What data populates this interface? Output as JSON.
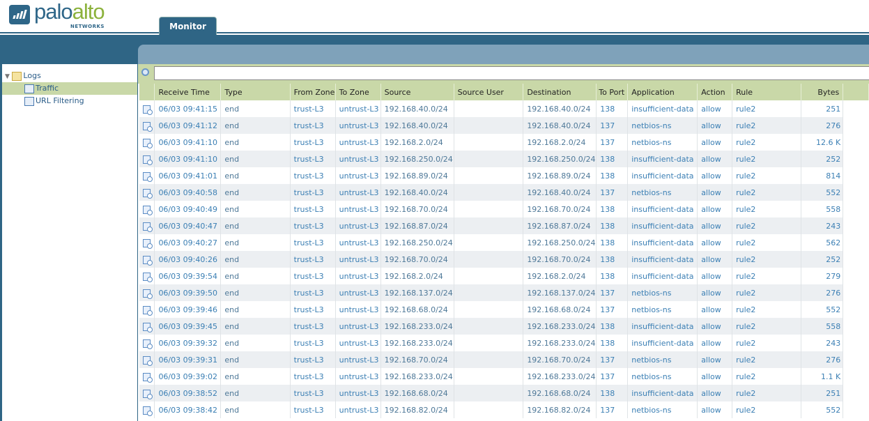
{
  "brand": {
    "name_a": "palo",
    "name_b": "alto",
    "sub": "NETWORKS"
  },
  "tabs": [
    {
      "label": "Monitor",
      "active": true
    }
  ],
  "sidebar": {
    "root": "Logs",
    "items": [
      {
        "label": "Traffic",
        "selected": true
      },
      {
        "label": "URL Filtering",
        "selected": false
      }
    ]
  },
  "search": {
    "value": "",
    "placeholder": ""
  },
  "colors": {
    "header": "#2f6585",
    "accent": "#c9d8a8",
    "link": "#3b7fb4"
  },
  "columns": [
    "Receive Time",
    "Type",
    "From Zone",
    "To Zone",
    "Source",
    "Source User",
    "Destination",
    "To Port",
    "Application",
    "Action",
    "Rule",
    "Bytes"
  ],
  "rows": [
    [
      "06/03 09:41:15",
      "end",
      "trust-L3",
      "untrust-L3",
      "192.168.40.0/24",
      "",
      "192.168.40.0/24",
      "138",
      "insufficient-data",
      "allow",
      "rule2",
      "251"
    ],
    [
      "06/03 09:41:12",
      "end",
      "trust-L3",
      "untrust-L3",
      "192.168.40.0/24",
      "",
      "192.168.40.0/24",
      "137",
      "netbios-ns",
      "allow",
      "rule2",
      "276"
    ],
    [
      "06/03 09:41:10",
      "end",
      "trust-L3",
      "untrust-L3",
      "192.168.2.0/24",
      "",
      "192.168.2.0/24",
      "137",
      "netbios-ns",
      "allow",
      "rule2",
      "12.6 K"
    ],
    [
      "06/03 09:41:10",
      "end",
      "trust-L3",
      "untrust-L3",
      "192.168.250.0/24",
      "",
      "192.168.250.0/24",
      "138",
      "insufficient-data",
      "allow",
      "rule2",
      "252"
    ],
    [
      "06/03 09:41:01",
      "end",
      "trust-L3",
      "untrust-L3",
      "192.168.89.0/24",
      "",
      "192.168.89.0/24",
      "138",
      "insufficient-data",
      "allow",
      "rule2",
      "814"
    ],
    [
      "06/03 09:40:58",
      "end",
      "trust-L3",
      "untrust-L3",
      "192.168.40.0/24",
      "",
      "192.168.40.0/24",
      "137",
      "netbios-ns",
      "allow",
      "rule2",
      "552"
    ],
    [
      "06/03 09:40:49",
      "end",
      "trust-L3",
      "untrust-L3",
      "192.168.70.0/24",
      "",
      "192.168.70.0/24",
      "138",
      "insufficient-data",
      "allow",
      "rule2",
      "558"
    ],
    [
      "06/03 09:40:47",
      "end",
      "trust-L3",
      "untrust-L3",
      "192.168.87.0/24",
      "",
      "192.168.87.0/24",
      "138",
      "insufficient-data",
      "allow",
      "rule2",
      "243"
    ],
    [
      "06/03 09:40:27",
      "end",
      "trust-L3",
      "untrust-L3",
      "192.168.250.0/24",
      "",
      "192.168.250.0/24",
      "138",
      "insufficient-data",
      "allow",
      "rule2",
      "562"
    ],
    [
      "06/03 09:40:26",
      "end",
      "trust-L3",
      "untrust-L3",
      "192.168.70.0/24",
      "",
      "192.168.70.0/24",
      "138",
      "insufficient-data",
      "allow",
      "rule2",
      "252"
    ],
    [
      "06/03 09:39:54",
      "end",
      "trust-L3",
      "untrust-L3",
      "192.168.2.0/24",
      "",
      "192.168.2.0/24",
      "138",
      "insufficient-data",
      "allow",
      "rule2",
      "279"
    ],
    [
      "06/03 09:39:50",
      "end",
      "trust-L3",
      "untrust-L3",
      "192.168.137.0/24",
      "",
      "192.168.137.0/24",
      "137",
      "netbios-ns",
      "allow",
      "rule2",
      "276"
    ],
    [
      "06/03 09:39:46",
      "end",
      "trust-L3",
      "untrust-L3",
      "192.168.68.0/24",
      "",
      "192.168.68.0/24",
      "137",
      "netbios-ns",
      "allow",
      "rule2",
      "552"
    ],
    [
      "06/03 09:39:45",
      "end",
      "trust-L3",
      "untrust-L3",
      "192.168.233.0/24",
      "",
      "192.168.233.0/24",
      "138",
      "insufficient-data",
      "allow",
      "rule2",
      "558"
    ],
    [
      "06/03 09:39:32",
      "end",
      "trust-L3",
      "untrust-L3",
      "192.168.233.0/24",
      "",
      "192.168.233.0/24",
      "138",
      "insufficient-data",
      "allow",
      "rule2",
      "243"
    ],
    [
      "06/03 09:39:31",
      "end",
      "trust-L3",
      "untrust-L3",
      "192.168.70.0/24",
      "",
      "192.168.70.0/24",
      "137",
      "netbios-ns",
      "allow",
      "rule2",
      "276"
    ],
    [
      "06/03 09:39:02",
      "end",
      "trust-L3",
      "untrust-L3",
      "192.168.233.0/24",
      "",
      "192.168.233.0/24",
      "137",
      "netbios-ns",
      "allow",
      "rule2",
      "1.1 K"
    ],
    [
      "06/03 09:38:52",
      "end",
      "trust-L3",
      "untrust-L3",
      "192.168.68.0/24",
      "",
      "192.168.68.0/24",
      "138",
      "insufficient-data",
      "allow",
      "rule2",
      "251"
    ],
    [
      "06/03 09:38:42",
      "end",
      "trust-L3",
      "untrust-L3",
      "192.168.82.0/24",
      "",
      "192.168.82.0/24",
      "137",
      "netbios-ns",
      "allow",
      "rule2",
      "552"
    ]
  ]
}
